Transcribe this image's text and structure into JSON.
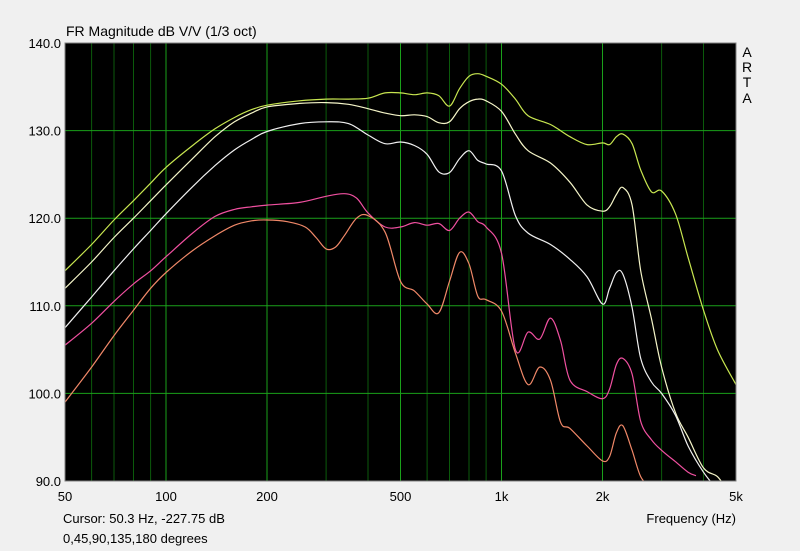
{
  "window": {
    "title": "FR Magnitude dB V/V (1/3 oct)",
    "brand": [
      "A",
      "R",
      "T",
      "A"
    ],
    "cursor_readout": "Cursor: 50.3 Hz, -227.75 dB",
    "angles_note": "0,45,90,135,180 degrees",
    "x_axis_label": "Frequency (Hz)"
  },
  "chart_data": {
    "type": "line",
    "title": "FR Magnitude dB V/V (1/3 oct)",
    "xlabel": "Frequency (Hz)",
    "ylabel": "",
    "xscale": "log",
    "xlim": [
      50,
      5000
    ],
    "ylim": [
      90,
      140
    ],
    "grid": true,
    "background": "#000000",
    "grid_color": "#1aa01a",
    "x_ticks": [
      {
        "value": 50,
        "label": "50"
      },
      {
        "value": 100,
        "label": "100"
      },
      {
        "value": 200,
        "label": "200"
      },
      {
        "value": 500,
        "label": "500"
      },
      {
        "value": 1000,
        "label": "1k"
      },
      {
        "value": 2000,
        "label": "2k"
      },
      {
        "value": 5000,
        "label": "5k"
      }
    ],
    "x_minor_grid": [
      60,
      70,
      80,
      90,
      300,
      400,
      600,
      700,
      800,
      900,
      3000,
      4000
    ],
    "y_ticks": [
      {
        "value": 90,
        "label": "90.0"
      },
      {
        "value": 100,
        "label": "100.0"
      },
      {
        "value": 110,
        "label": "110.0"
      },
      {
        "value": 120,
        "label": "120.0"
      },
      {
        "value": 130,
        "label": "130.0"
      },
      {
        "value": 140,
        "label": "140.0"
      }
    ],
    "series": [
      {
        "color": "#c8e650",
        "points": [
          [
            50,
            114.0
          ],
          [
            60,
            117.0
          ],
          [
            70,
            119.8
          ],
          [
            80,
            122.0
          ],
          [
            90,
            124.0
          ],
          [
            100,
            125.8
          ],
          [
            120,
            128.3
          ],
          [
            140,
            130.2
          ],
          [
            160,
            131.5
          ],
          [
            180,
            132.4
          ],
          [
            200,
            132.9
          ],
          [
            250,
            133.4
          ],
          [
            300,
            133.6
          ],
          [
            350,
            133.6
          ],
          [
            400,
            133.7
          ],
          [
            450,
            134.3
          ],
          [
            500,
            134.3
          ],
          [
            550,
            134.1
          ],
          [
            600,
            134.3
          ],
          [
            650,
            134.0
          ],
          [
            700,
            132.8
          ],
          [
            750,
            134.8
          ],
          [
            800,
            136.2
          ],
          [
            850,
            136.5
          ],
          [
            900,
            136.2
          ],
          [
            1000,
            135.3
          ],
          [
            1100,
            133.6
          ],
          [
            1200,
            131.7
          ],
          [
            1400,
            130.7
          ],
          [
            1600,
            129.3
          ],
          [
            1800,
            128.4
          ],
          [
            2000,
            128.6
          ],
          [
            2100,
            128.4
          ],
          [
            2200,
            129.3
          ],
          [
            2300,
            129.6
          ],
          [
            2450,
            128.5
          ],
          [
            2600,
            125.5
          ],
          [
            2800,
            123.0
          ],
          [
            3000,
            123.1
          ],
          [
            3300,
            120.5
          ],
          [
            3600,
            115.5
          ],
          [
            4000,
            109.5
          ],
          [
            4400,
            105.0
          ],
          [
            5000,
            101.0
          ]
        ]
      },
      {
        "color": "#f5f5c8",
        "points": [
          [
            50,
            112.0
          ],
          [
            60,
            115.0
          ],
          [
            70,
            117.8
          ],
          [
            80,
            120.0
          ],
          [
            90,
            122.0
          ],
          [
            100,
            123.8
          ],
          [
            120,
            126.8
          ],
          [
            140,
            129.3
          ],
          [
            160,
            131.0
          ],
          [
            180,
            132.0
          ],
          [
            200,
            132.7
          ],
          [
            250,
            133.1
          ],
          [
            300,
            133.2
          ],
          [
            350,
            133.0
          ],
          [
            400,
            132.5
          ],
          [
            450,
            132.0
          ],
          [
            500,
            131.7
          ],
          [
            550,
            131.8
          ],
          [
            600,
            131.6
          ],
          [
            650,
            130.9
          ],
          [
            700,
            131.0
          ],
          [
            750,
            132.5
          ],
          [
            800,
            133.3
          ],
          [
            850,
            133.6
          ],
          [
            900,
            133.4
          ],
          [
            1000,
            132.2
          ],
          [
            1100,
            129.6
          ],
          [
            1200,
            127.7
          ],
          [
            1400,
            126.3
          ],
          [
            1600,
            124.1
          ],
          [
            1800,
            121.5
          ],
          [
            2000,
            120.8
          ],
          [
            2100,
            121.3
          ],
          [
            2200,
            122.7
          ],
          [
            2300,
            123.5
          ],
          [
            2450,
            121.5
          ],
          [
            2600,
            114.0
          ],
          [
            2800,
            108.5
          ],
          [
            3000,
            103.0
          ],
          [
            3300,
            97.8
          ],
          [
            3600,
            95.0
          ],
          [
            4000,
            91.5
          ],
          [
            4400,
            90.5
          ],
          [
            4700,
            89.0
          ]
        ]
      },
      {
        "color": "#f0f0f0",
        "points": [
          [
            50,
            107.5
          ],
          [
            60,
            111.0
          ],
          [
            70,
            114.0
          ],
          [
            80,
            116.5
          ],
          [
            90,
            118.6
          ],
          [
            100,
            120.5
          ],
          [
            120,
            123.6
          ],
          [
            140,
            126.0
          ],
          [
            160,
            127.8
          ],
          [
            180,
            129.0
          ],
          [
            200,
            129.9
          ],
          [
            250,
            130.8
          ],
          [
            300,
            131.0
          ],
          [
            350,
            130.8
          ],
          [
            400,
            129.5
          ],
          [
            450,
            128.5
          ],
          [
            500,
            128.7
          ],
          [
            550,
            128.3
          ],
          [
            600,
            127.3
          ],
          [
            650,
            125.3
          ],
          [
            700,
            125.2
          ],
          [
            750,
            126.8
          ],
          [
            800,
            127.7
          ],
          [
            850,
            126.6
          ],
          [
            900,
            126.2
          ],
          [
            1000,
            125.4
          ],
          [
            1100,
            120.3
          ],
          [
            1200,
            118.3
          ],
          [
            1400,
            117.0
          ],
          [
            1600,
            115.3
          ],
          [
            1800,
            113.3
          ],
          [
            2000,
            110.2
          ],
          [
            2100,
            112.0
          ],
          [
            2200,
            113.8
          ],
          [
            2300,
            113.6
          ],
          [
            2450,
            109.8
          ],
          [
            2600,
            104.0
          ],
          [
            2800,
            101.3
          ],
          [
            3000,
            100.0
          ],
          [
            3300,
            97.5
          ],
          [
            3600,
            94.0
          ],
          [
            4000,
            91.0
          ],
          [
            4400,
            89.0
          ]
        ]
      },
      {
        "color": "#f050a0",
        "points": [
          [
            50,
            105.5
          ],
          [
            60,
            108.0
          ],
          [
            70,
            110.5
          ],
          [
            80,
            112.5
          ],
          [
            90,
            114.0
          ],
          [
            100,
            115.6
          ],
          [
            120,
            118.3
          ],
          [
            140,
            120.2
          ],
          [
            160,
            121.0
          ],
          [
            180,
            121.3
          ],
          [
            200,
            121.5
          ],
          [
            250,
            121.8
          ],
          [
            300,
            122.5
          ],
          [
            340,
            122.8
          ],
          [
            370,
            122.3
          ],
          [
            400,
            120.6
          ],
          [
            450,
            119.0
          ],
          [
            500,
            119.0
          ],
          [
            550,
            119.5
          ],
          [
            600,
            119.2
          ],
          [
            650,
            119.4
          ],
          [
            700,
            118.6
          ],
          [
            750,
            120.0
          ],
          [
            800,
            120.7
          ],
          [
            850,
            119.6
          ],
          [
            900,
            119.0
          ],
          [
            1000,
            116.0
          ],
          [
            1100,
            105.0
          ],
          [
            1200,
            107.0
          ],
          [
            1300,
            106.2
          ],
          [
            1400,
            108.6
          ],
          [
            1500,
            106.0
          ],
          [
            1600,
            101.5
          ],
          [
            1800,
            100.2
          ],
          [
            2000,
            99.4
          ],
          [
            2100,
            100.5
          ],
          [
            2200,
            103.3
          ],
          [
            2300,
            104.0
          ],
          [
            2450,
            102.2
          ],
          [
            2600,
            96.8
          ],
          [
            2800,
            94.7
          ],
          [
            3000,
            93.5
          ],
          [
            3300,
            92.2
          ],
          [
            3600,
            91.0
          ],
          [
            3800,
            90.6
          ]
        ]
      },
      {
        "color": "#f08868",
        "points": [
          [
            50,
            99.0
          ],
          [
            60,
            103.0
          ],
          [
            70,
            106.6
          ],
          [
            80,
            109.5
          ],
          [
            90,
            112.0
          ],
          [
            100,
            113.8
          ],
          [
            120,
            116.3
          ],
          [
            140,
            118.0
          ],
          [
            160,
            119.2
          ],
          [
            180,
            119.7
          ],
          [
            200,
            119.8
          ],
          [
            230,
            119.6
          ],
          [
            260,
            119.0
          ],
          [
            280,
            117.8
          ],
          [
            300,
            116.5
          ],
          [
            320,
            116.7
          ],
          [
            340,
            118.0
          ],
          [
            370,
            120.0
          ],
          [
            400,
            120.3
          ],
          [
            450,
            118.4
          ],
          [
            500,
            112.8
          ],
          [
            550,
            111.7
          ],
          [
            600,
            110.2
          ],
          [
            650,
            109.2
          ],
          [
            700,
            112.8
          ],
          [
            750,
            116.1
          ],
          [
            800,
            114.8
          ],
          [
            850,
            111.1
          ],
          [
            900,
            110.7
          ],
          [
            1000,
            109.4
          ],
          [
            1100,
            104.6
          ],
          [
            1200,
            101.0
          ],
          [
            1300,
            103.0
          ],
          [
            1400,
            101.5
          ],
          [
            1500,
            96.7
          ],
          [
            1600,
            96.0
          ],
          [
            1800,
            94.0
          ],
          [
            2000,
            92.3
          ],
          [
            2100,
            92.8
          ],
          [
            2200,
            95.5
          ],
          [
            2300,
            96.3
          ],
          [
            2450,
            93.5
          ],
          [
            2600,
            90.5
          ],
          [
            2800,
            89.0
          ]
        ]
      }
    ]
  }
}
